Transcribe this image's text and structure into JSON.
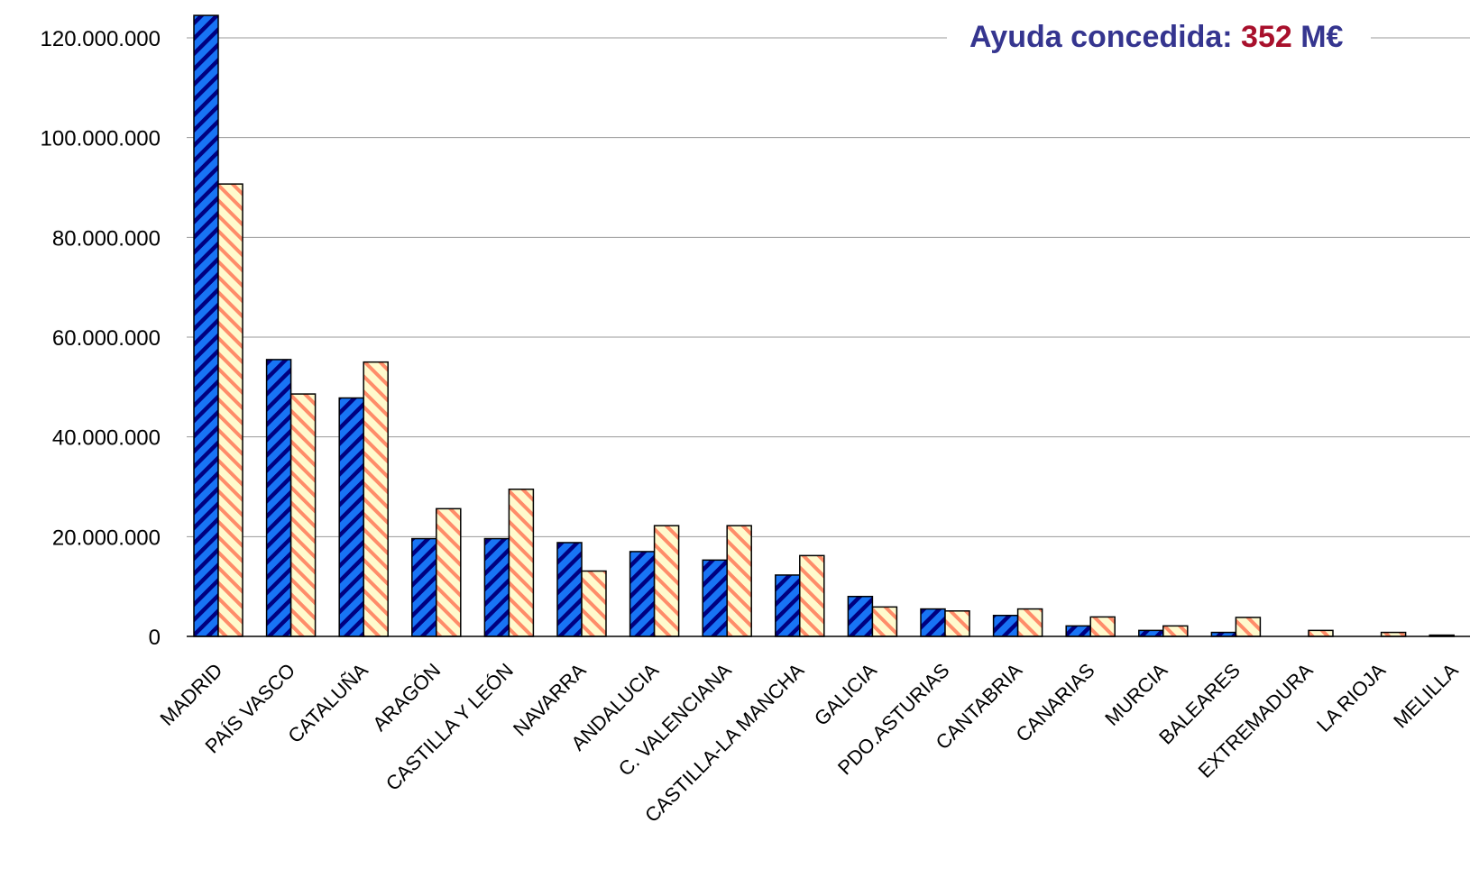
{
  "colors": {
    "series1_fill": "#1874f5",
    "series1_stripe": "#000080",
    "series2_fill": "#fffacd",
    "series2_stripe": "#ff8c69",
    "grid": "#9a9a9a",
    "title_text": "#35358f",
    "title_value": "#a8102c"
  },
  "title": {
    "prefix": "Ayuda concedida: ",
    "value": "352",
    "unit": " M€"
  },
  "chart_data": {
    "type": "bar",
    "categories": [
      "MADRID",
      "PAÍS VASCO",
      "CATALUÑA",
      "ARAGÓN",
      "CASTILLA Y LEÓN",
      "NAVARRA",
      "ANDALUCIA",
      "C. VALENCIANA",
      "CASTILLA-LA MANCHA",
      "GALICIA",
      "PDO.ASTURIAS",
      "CANTABRIA",
      "CANARIAS",
      "MURCIA",
      "BALEARES",
      "EXTREMADURA",
      "LA RIOJA",
      "MELILLA"
    ],
    "series": [
      {
        "values": [
          124500000,
          55500000,
          47800000,
          19600000,
          19600000,
          18800000,
          17000000,
          15300000,
          12300000,
          8000000,
          5500000,
          4200000,
          2100000,
          1200000,
          800000,
          0,
          0,
          250000
        ]
      },
      {
        "values": [
          90700000,
          48600000,
          55000000,
          25600000,
          29500000,
          13100000,
          22200000,
          22200000,
          16200000,
          5900000,
          5100000,
          5500000,
          3900000,
          2100000,
          3800000,
          1200000,
          800000,
          0
        ]
      }
    ],
    "ylim": [
      0,
      120000000
    ],
    "yticks": [
      "0",
      "20.000.000",
      "40.000.000",
      "60.000.000",
      "80.000.000",
      "100.000.000",
      "120.000.000"
    ],
    "ytick_values": [
      0,
      20000000,
      40000000,
      60000000,
      80000000,
      100000000,
      120000000
    ],
    "grid": true,
    "legend": "none"
  }
}
